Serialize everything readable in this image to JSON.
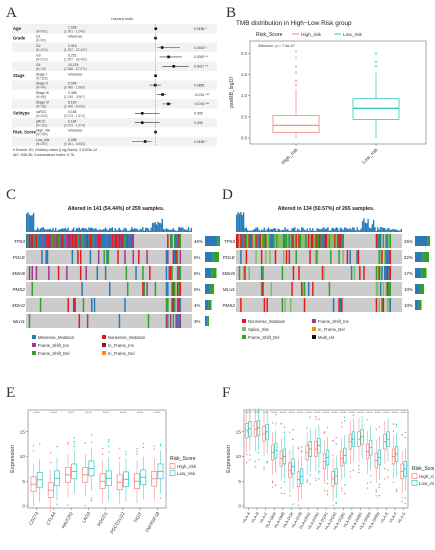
{
  "panels": {
    "A": {
      "label": "A",
      "header": "Hazard ratio",
      "rows": [
        {
          "group": "Age",
          "level": "",
          "n": "(N=501)",
          "hr": "1.028",
          "ci": "(1.001 - 1.040)",
          "p": "0.0156 *",
          "est": 1.028,
          "lo": 1.001,
          "hi": 1.04
        },
        {
          "group": "Grade",
          "level": "G1",
          "n": "(N=60)",
          "hr": "reference",
          "ci": "",
          "p": "",
          "est": 1,
          "lo": 1,
          "hi": 1,
          "ref": true
        },
        {
          "group": "",
          "level": "G2",
          "n": "(N=212)",
          "hr": "2.318",
          "ci": "(1.297 - 22.447)",
          "p": "0.0015 *",
          "est": 2.318,
          "lo": 1.297,
          "hi": 22.447
        },
        {
          "group": "",
          "level": "G3",
          "n": "(N=213)",
          "hr": "5.252",
          "ci": "(1.657 - 28.452)",
          "p": "0.0049 **",
          "est": 5.252,
          "lo": 1.657,
          "hi": 28.452
        },
        {
          "group": "",
          "level": "G4",
          "n": "(N=15)",
          "hr": "10.129",
          "ci": "(2.368 - 67.071)",
          "p": "0.0017 **",
          "est": 10.129,
          "lo": 2.368,
          "hi": 67.071
        },
        {
          "group": "Stage",
          "level": "Stage I",
          "n": "(N=325)",
          "hr": "reference",
          "ci": "",
          "p": "",
          "est": 1,
          "lo": 1,
          "hi": 1,
          "ref": true
        },
        {
          "group": "",
          "level": "Stage II",
          "n": "(N=49)",
          "hr": "0.954",
          "ci": "(0.480 - 1.960)",
          "p": "0.0855",
          "est": 0.954,
          "lo": 0.48,
          "hi": 1.96
        },
        {
          "group": "",
          "level": "Stage III",
          "n": "(N=98)",
          "hr": "2.455",
          "ci": "(1.155 - 3.967)",
          "p": "<0.001 ***",
          "est": 2.455,
          "lo": 1.155,
          "hi": 3.967
        },
        {
          "group": "",
          "level": "Stage IV",
          "n": "(N=18)",
          "hr": "5.100",
          "ci": "(2.466 - 8.030)",
          "p": "<0.001 ***",
          "est": 5.1,
          "lo": 2.466,
          "hi": 8.03
        },
        {
          "group": "Subtype",
          "level": "ccRCC",
          "n": "(N=400)",
          "hr": "0.184",
          "ci": "(0.073 - 1.674)",
          "p": "0.005",
          "est": 0.184,
          "lo": 0.073,
          "hi": 1.674
        },
        {
          "group": "",
          "level": "pRCC",
          "n": "(N=110)",
          "hr": "0.184",
          "ci": "(0.073 - 1.674)",
          "p": "0.005",
          "est": 0.184,
          "lo": 0.073,
          "hi": 1.674
        },
        {
          "group": "Risk_Score",
          "level": "High_risk",
          "n": "(N=254)",
          "hr": "reference",
          "ci": "",
          "p": "",
          "est": 1,
          "lo": 1,
          "hi": 1,
          "ref": true
        },
        {
          "group": "",
          "level": "Low_risk",
          "n": "(N=257)",
          "hr": "0.266",
          "ci": "(0.041 - 0.605)",
          "p": "0.0158 *",
          "est": 0.266,
          "lo": 0.041,
          "hi": 0.605
        }
      ],
      "footer1": "# Events: 81; Global p-value (Log-Rank): 2.5103e-12",
      "footer2": "AIC: 846.36; Concordance Index: 0.76"
    },
    "B": {
      "label": "B",
      "title": "TMB distribution in High−Low Risk group",
      "legend_title": "Risk_Score",
      "stat": "Wilcoxon, p = 7.4e-07",
      "ylabel": "pan​IMB_log10",
      "ylabel_text": "panMB_log10",
      "yticks": [
        "0.0",
        "0.5",
        "1.0",
        "1.5",
        "2.0"
      ],
      "groups": [
        {
          "name": "High_risk",
          "color": "#f4837d",
          "q1": 0.13,
          "med": 0.3,
          "q3": 0.53,
          "wlo": 0.0,
          "whi": 1.15,
          "outliers": [
            1.25,
            1.35,
            1.55,
            1.9,
            2.05,
            1.7
          ]
        },
        {
          "name": "Low_risk",
          "color": "#2ec6c6",
          "q1": 0.44,
          "med": 0.7,
          "q3": 0.93,
          "wlo": 0.0,
          "whi": 1.55,
          "outliers": [
            1.7,
            1.8,
            2.0
          ]
        }
      ]
    },
    "C": {
      "label": "C",
      "title": "Altered in 141 (54.44%) of 259 samples.",
      "genes": [
        "TP53",
        "POLE",
        "MSH6",
        "PMS2",
        "MSH2",
        "MLH1"
      ],
      "pcts": [
        "46%",
        "8%",
        "8%",
        "5%",
        "4%",
        "3%"
      ],
      "legend": [
        "Missense_Mutation",
        "Nonsense_Mutation",
        "Frame_Shift_Ins",
        "In_Frame_Ins",
        "Frame_Shift_Del",
        "In_Frame_Del"
      ]
    },
    "D": {
      "label": "D",
      "title": "Altered in 134 (50.57%) of 265 samples.",
      "genes": [
        "TP53",
        "POLE",
        "MSH6",
        "MLH1",
        "PMS2"
      ],
      "pcts": [
        "26%",
        "22%",
        "17%",
        "10%",
        "10%"
      ],
      "legend": [
        "Nonsense_Mutation",
        "Frame_Shift_Ins",
        "Splice_Site",
        "In_Frame_Del",
        "Frame_Shift_Del",
        "Multi_Hit"
      ]
    },
    "E": {
      "label": "E",
      "ylabel": "Expression",
      "yticks": [
        "0",
        "5",
        "10",
        "15"
      ],
      "legend_title": "Risk_Score",
      "legend": [
        "High_risk",
        "Low_risk"
      ],
      "genes": [
        "CD274",
        "CTLA4",
        "HAVCR2",
        "LAG3",
        "PDCD1",
        "PDCD1LG2",
        "TIGIT",
        "TNFRSF18"
      ],
      "sig": "****",
      "high_med": [
        4.4,
        3.2,
        6.3,
        6.3,
        5.0,
        4.8,
        5.0,
        5.5
      ],
      "low_med": [
        5.3,
        5.6,
        7.0,
        7.6,
        5.6,
        5.4,
        5.8,
        7.0
      ]
    },
    "F": {
      "label": "F",
      "ylabel": "Expression",
      "yticks": [
        "0",
        "5",
        "10",
        "15"
      ],
      "legend_title": "Risk_Score",
      "legend": [
        "High_risk",
        "Low_risk"
      ],
      "genes": [
        "HLA-A",
        "HLA-B",
        "HLA-C",
        "HLA-DMA",
        "HLA-DMB",
        "HLA-DOA",
        "HLA-DOB",
        "HLA-DPA1",
        "HLA-DPB1",
        "HLA-DQA1",
        "HLA-DQA2",
        "HLA-DQB1",
        "HLA-DRA",
        "HLA-DRB1",
        "HLA-DRB5",
        "HLA-DRB6",
        "HLA-E",
        "HLA-F",
        "HLA-G"
      ],
      "sig": "****",
      "high_med": [
        15.2,
        15.5,
        14.6,
        10.8,
        9.6,
        7.2,
        5.4,
        10.8,
        11.5,
        9.0,
        5.5,
        9.6,
        13.0,
        13.5,
        11.0,
        9.2,
        13.0,
        10.0,
        7.0
      ],
      "low_med": [
        15.6,
        15.8,
        15.0,
        11.2,
        10.0,
        8.0,
        6.0,
        11.5,
        12.2,
        9.8,
        6.0,
        10.2,
        13.5,
        14.0,
        11.8,
        9.8,
        13.5,
        10.5,
        7.5
      ]
    }
  },
  "colors": {
    "high": "#f4837d",
    "low": "#2ec6c6",
    "missense": "#2a7ab8",
    "frameshift_del": "#33a02c",
    "nonsense": "#e31a1c",
    "frameshift_ins": "#9e3a8a",
    "inframe_del": "#ff8c00",
    "inframe_ins": "#8b1a1a",
    "multi_hit": "#111111",
    "splice": "#80c060",
    "grey": "#cccccc"
  }
}
